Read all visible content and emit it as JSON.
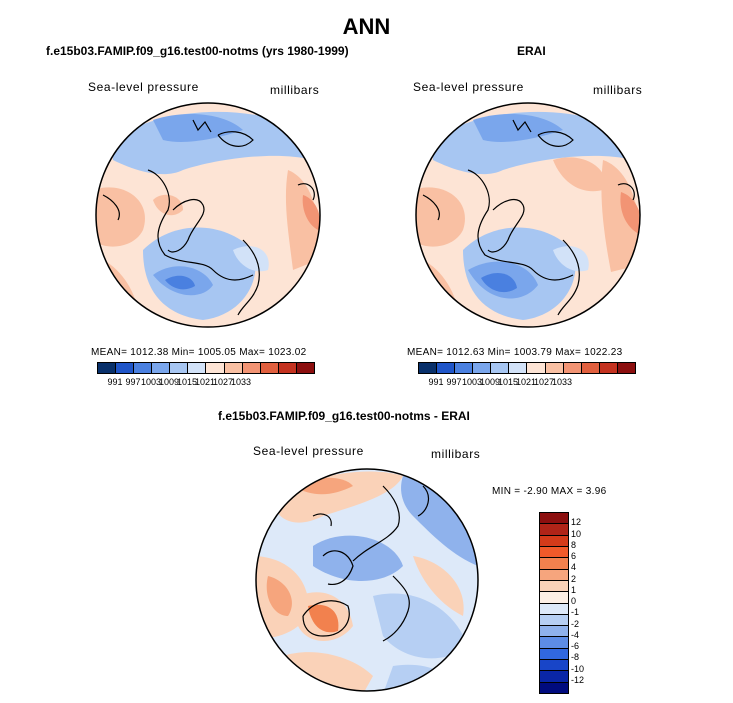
{
  "chart_data": {
    "type": "polar-contour-map",
    "figure_title": "ANN",
    "panels": [
      {
        "title": "f.e15b03.FAMIP.f09_g16.test00-notms (yrs 1980-1999)",
        "variable": "Sea-level pressure",
        "units": "millibars",
        "stats": "MEAN= 1012.38   Min= 1005.05   Max= 1023.02",
        "colorbar_ticks": [
          "991",
          "997",
          "1003",
          "1009",
          "1015",
          "1021",
          "1027",
          "1033"
        ]
      },
      {
        "title": "ERAI",
        "variable": "Sea-level pressure",
        "units": "millibars",
        "stats": "MEAN= 1012.63   Min= 1003.79   Max= 1022.23",
        "colorbar_ticks": [
          "991",
          "997",
          "1003",
          "1009",
          "1015",
          "1021",
          "1027",
          "1033"
        ]
      },
      {
        "title": "f.e15b03.FAMIP.f09_g16.test00-notms - ERAI",
        "variable": "Sea-level pressure",
        "units": "millibars",
        "stats": "MIN =   -2.90 MAX =    3.96",
        "colorbar_ticks": [
          "12",
          "10",
          "8",
          "6",
          "4",
          "2",
          "1",
          "0",
          "-1",
          "-2",
          "-4",
          "-6",
          "-8",
          "-10",
          "-12"
        ]
      }
    ],
    "abs_colors": [
      "#08306b",
      "#1f55c8",
      "#4a80e0",
      "#7aa6ec",
      "#a7c6f2",
      "#d2e2f8",
      "#fde4d5",
      "#f9c0a3",
      "#f29474",
      "#e1603f",
      "#c43220",
      "#8c0f0f"
    ],
    "diff_colors": [
      "#8c0f0f",
      "#b02418",
      "#d43b1a",
      "#f05a2a",
      "#f2814e",
      "#f6a57d",
      "#fad2b8",
      "#fdf0e6",
      "#dde9f9",
      "#b6cff3",
      "#8fb2ec",
      "#5d8de6",
      "#3168e0",
      "#1845c8",
      "#0a26a6",
      "#000b7e"
    ]
  }
}
